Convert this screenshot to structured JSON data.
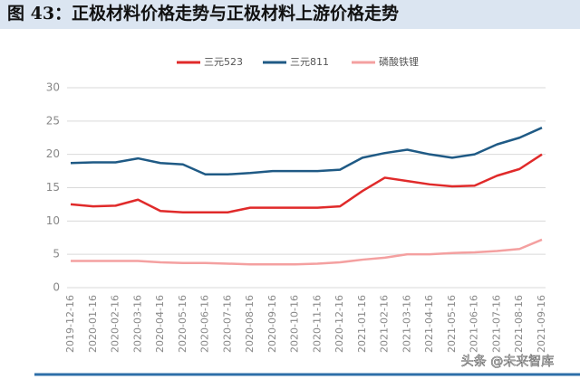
{
  "chart_data": {
    "type": "line",
    "title": "图 43：正极材料价格走势与正极材料上游价格走势",
    "categories": [
      "2019-12-16",
      "2020-01-16",
      "2020-02-16",
      "2020-03-16",
      "2020-04-16",
      "2020-05-16",
      "2020-06-16",
      "2020-07-16",
      "2020-08-16",
      "2020-09-16",
      "2020-10-16",
      "2020-11-16",
      "2020-12-16",
      "2021-01-16",
      "2021-02-16",
      "2021-03-16",
      "2021-04-16",
      "2021-05-16",
      "2021-06-16",
      "2021-07-16",
      "2021-08-16",
      "2021-09-16"
    ],
    "series": [
      {
        "name": "三元523",
        "color": "#e02a2a",
        "values": [
          12.5,
          12.2,
          12.3,
          13.2,
          11.5,
          11.3,
          11.3,
          11.3,
          12,
          12,
          12,
          12,
          12.2,
          14.5,
          16.5,
          16,
          15.5,
          15.2,
          15.3,
          16.8,
          17.8,
          20
        ]
      },
      {
        "name": "三元811",
        "color": "#1f5a85",
        "values": [
          18.7,
          18.8,
          18.8,
          19.4,
          18.7,
          18.5,
          17,
          17,
          17.2,
          17.5,
          17.5,
          17.5,
          17.7,
          19.5,
          20.2,
          20.7,
          20,
          19.5,
          20,
          21.5,
          22.5,
          24
        ]
      },
      {
        "name": "磷酸铁锂",
        "color": "#f4a0a0",
        "values": [
          4,
          4,
          4,
          4,
          3.8,
          3.7,
          3.7,
          3.6,
          3.5,
          3.5,
          3.5,
          3.6,
          3.8,
          4.2,
          4.5,
          5,
          5,
          5.2,
          5.3,
          5.5,
          5.8,
          7.2
        ]
      }
    ],
    "ylim": [
      0,
      30
    ],
    "yticks": [
      0,
      5,
      10,
      15,
      20,
      25,
      30
    ],
    "grid": true,
    "watermark": "头条 @未来智库"
  }
}
